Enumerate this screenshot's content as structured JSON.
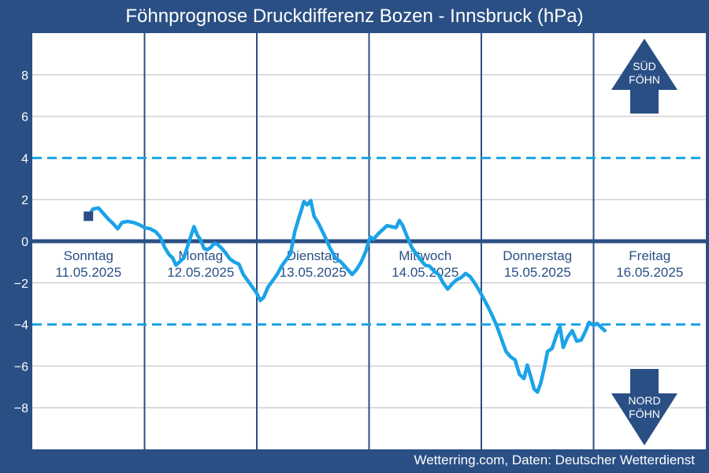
{
  "title": "Föhnprognose Druckdifferenz Bozen - Innsbruck (hPa)",
  "credit": "Wetterring.com, Daten: Deutscher Wetterdienst",
  "colors": {
    "background": "#2a4f84",
    "plot": "#ffffff",
    "line": "#1aa3e8",
    "threshold": "#1aa3e8",
    "zero": "#2a4f84",
    "grid": "#d0d0d0",
    "arrow": "#2a4f84"
  },
  "chart_data": {
    "type": "line",
    "title": "Föhnprognose Druckdifferenz Bozen - Innsbruck (hPa)",
    "xlabel": "",
    "ylabel": "",
    "ylim": [
      -10,
      10
    ],
    "xlim": [
      0,
      6
    ],
    "yticks": [
      8,
      6,
      4,
      2,
      0,
      -2,
      -4,
      -6,
      -8
    ],
    "ytick_labels": [
      "8",
      "6",
      "4",
      "2",
      "0",
      "−2",
      "−4",
      "−6",
      "−8"
    ],
    "grid": true,
    "thresholds": [
      4,
      -4
    ],
    "days": [
      {
        "name": "Sonntag",
        "date": "11.05.2025"
      },
      {
        "name": "Montag",
        "date": "12.05.2025"
      },
      {
        "name": "Dienstag",
        "date": "13.05.2025"
      },
      {
        "name": "Mittwoch",
        "date": "14.05.2025"
      },
      {
        "name": "Donnerstag",
        "date": "15.05.2025"
      },
      {
        "name": "Freitag",
        "date": "16.05.2025"
      }
    ],
    "current": {
      "x": 0.5,
      "y": 1.2
    },
    "arrows": {
      "up": [
        "SÜD",
        "FÖHN"
      ],
      "down": [
        "NORD",
        "FÖHN"
      ]
    },
    "series": [
      {
        "points": [
          [
            0.5,
            1.2
          ],
          [
            0.54,
            1.55
          ],
          [
            0.59,
            1.6
          ],
          [
            0.63,
            1.35
          ],
          [
            0.68,
            1.05
          ],
          [
            0.72,
            0.85
          ],
          [
            0.76,
            0.6
          ],
          [
            0.8,
            0.9
          ],
          [
            0.85,
            0.95
          ],
          [
            0.9,
            0.9
          ],
          [
            0.95,
            0.8
          ],
          [
            1.0,
            0.65
          ],
          [
            1.05,
            0.6
          ],
          [
            1.1,
            0.45
          ],
          [
            1.14,
            0.2
          ],
          [
            1.18,
            -0.3
          ],
          [
            1.22,
            -0.65
          ],
          [
            1.25,
            -0.8
          ],
          [
            1.28,
            -1.15
          ],
          [
            1.31,
            -1.0
          ],
          [
            1.35,
            -0.8
          ],
          [
            1.38,
            -0.3
          ],
          [
            1.41,
            0.2
          ],
          [
            1.44,
            0.7
          ],
          [
            1.47,
            0.3
          ],
          [
            1.5,
            0.05
          ],
          [
            1.53,
            -0.35
          ],
          [
            1.56,
            -0.4
          ],
          [
            1.59,
            -0.3
          ],
          [
            1.62,
            -0.1
          ],
          [
            1.65,
            -0.15
          ],
          [
            1.68,
            -0.3
          ],
          [
            1.72,
            -0.55
          ],
          [
            1.76,
            -0.85
          ],
          [
            1.8,
            -1.0
          ],
          [
            1.84,
            -1.1
          ],
          [
            1.88,
            -1.6
          ],
          [
            1.92,
            -1.9
          ],
          [
            1.96,
            -2.2
          ],
          [
            2.0,
            -2.5
          ],
          [
            2.03,
            -2.85
          ],
          [
            2.06,
            -2.7
          ],
          [
            2.1,
            -2.2
          ],
          [
            2.14,
            -1.9
          ],
          [
            2.18,
            -1.6
          ],
          [
            2.22,
            -1.2
          ],
          [
            2.26,
            -0.9
          ],
          [
            2.3,
            -0.6
          ],
          [
            2.34,
            0.5
          ],
          [
            2.38,
            1.2
          ],
          [
            2.42,
            1.9
          ],
          [
            2.45,
            1.75
          ],
          [
            2.48,
            1.95
          ],
          [
            2.51,
            1.2
          ],
          [
            2.55,
            0.85
          ],
          [
            2.6,
            0.3
          ],
          [
            2.65,
            -0.3
          ],
          [
            2.7,
            -0.8
          ],
          [
            2.75,
            -1.0
          ],
          [
            2.8,
            -1.3
          ],
          [
            2.85,
            -1.6
          ],
          [
            2.89,
            -1.35
          ],
          [
            2.93,
            -1.0
          ],
          [
            2.97,
            -0.5
          ],
          [
            3.01,
            0.2
          ],
          [
            3.04,
            0.1
          ],
          [
            3.08,
            0.35
          ],
          [
            3.12,
            0.55
          ],
          [
            3.16,
            0.75
          ],
          [
            3.2,
            0.7
          ],
          [
            3.24,
            0.65
          ],
          [
            3.27,
            1.0
          ],
          [
            3.3,
            0.75
          ],
          [
            3.34,
            0.2
          ],
          [
            3.38,
            -0.3
          ],
          [
            3.42,
            -0.6
          ],
          [
            3.46,
            -0.9
          ],
          [
            3.5,
            -1.15
          ],
          [
            3.54,
            -1.2
          ],
          [
            3.58,
            -1.45
          ],
          [
            3.62,
            -1.6
          ],
          [
            3.66,
            -2.0
          ],
          [
            3.7,
            -2.3
          ],
          [
            3.74,
            -2.05
          ],
          [
            3.78,
            -1.85
          ],
          [
            3.82,
            -1.75
          ],
          [
            3.86,
            -1.55
          ],
          [
            3.9,
            -1.7
          ],
          [
            3.94,
            -2.0
          ],
          [
            3.98,
            -2.35
          ],
          [
            4.02,
            -2.75
          ],
          [
            4.06,
            -3.15
          ],
          [
            4.1,
            -3.6
          ],
          [
            4.14,
            -4.1
          ],
          [
            4.18,
            -4.7
          ],
          [
            4.22,
            -5.3
          ],
          [
            4.26,
            -5.55
          ],
          [
            4.3,
            -5.7
          ],
          [
            4.34,
            -6.4
          ],
          [
            4.38,
            -6.6
          ],
          [
            4.41,
            -5.95
          ],
          [
            4.44,
            -6.5
          ],
          [
            4.47,
            -7.1
          ],
          [
            4.5,
            -7.25
          ],
          [
            4.53,
            -6.8
          ],
          [
            4.56,
            -6.1
          ],
          [
            4.59,
            -5.3
          ],
          [
            4.63,
            -5.15
          ],
          [
            4.67,
            -4.5
          ],
          [
            4.7,
            -4.1
          ],
          [
            4.73,
            -5.1
          ],
          [
            4.77,
            -4.6
          ],
          [
            4.81,
            -4.3
          ],
          [
            4.85,
            -4.8
          ],
          [
            4.89,
            -4.75
          ],
          [
            4.93,
            -4.3
          ],
          [
            4.96,
            -3.9
          ],
          [
            5.0,
            -4.05
          ],
          [
            5.03,
            -3.95
          ],
          [
            5.06,
            -4.1
          ],
          [
            5.1,
            -4.3
          ]
        ]
      }
    ]
  }
}
